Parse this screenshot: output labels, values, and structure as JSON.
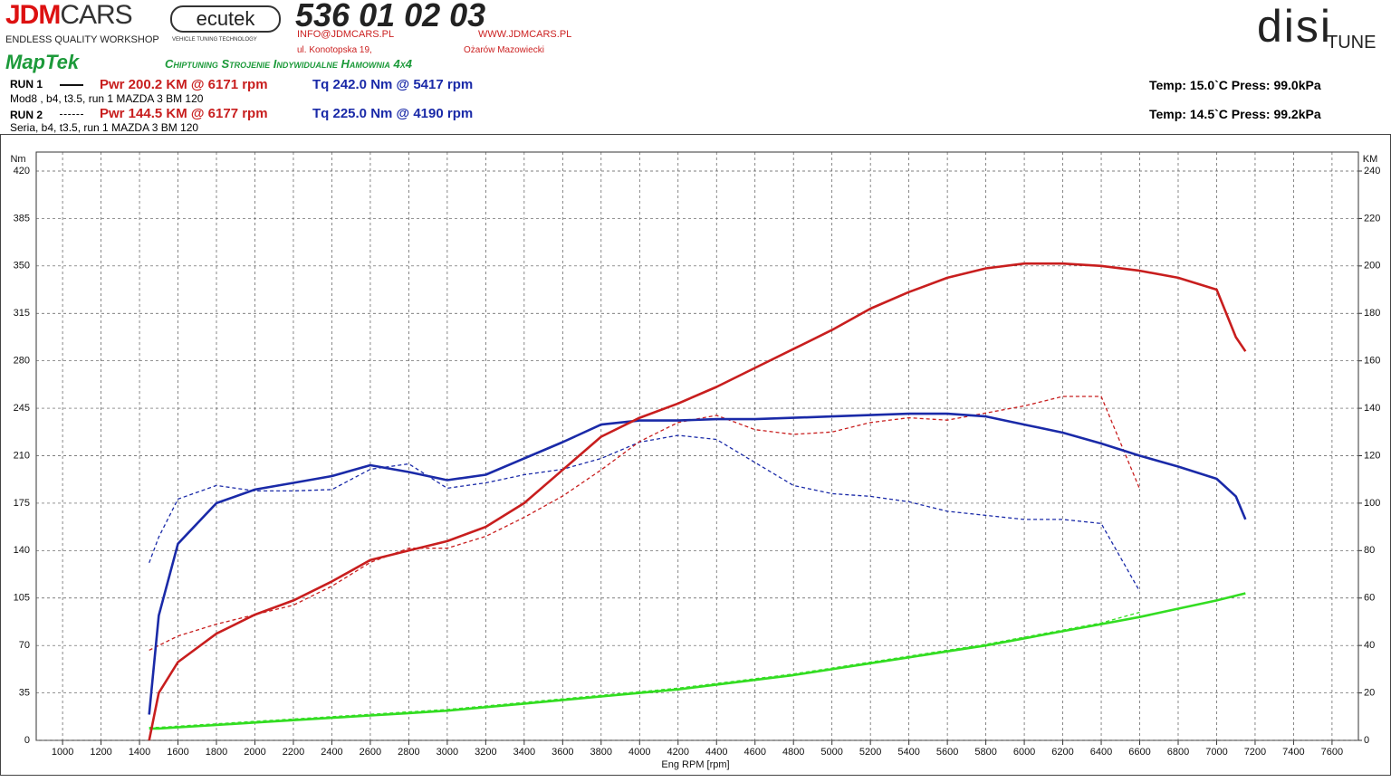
{
  "header": {
    "brand_a": "JDM",
    "brand_b": "CARS",
    "brand_tag": "ENDLESS QUALITY WORKSHOP",
    "ecutek": "ecutek",
    "ecutek_tag": "VEHICLE TUNING TECHNOLOGY",
    "phone": "536 01 02 03",
    "email": "INFO@JDMCARS.PL",
    "web": "WWW.JDMCARS.PL",
    "street": "ul. Konotopska 19,",
    "city": "Ożarów Mazowiecki",
    "maptek": "MapTek",
    "slogan": "Chiptuning Strojenie Indywidualne Hamownia 4x4",
    "disi": "disi",
    "tune": "TUNE"
  },
  "runs": [
    {
      "label": "RUN 1",
      "power": "Pwr  200.2 KM @ 6171 rpm",
      "torque": "Tq 242.0 Nm @ 5417 rpm",
      "desc": "Mod8  , b4, t3.5, run 1 MAZDA 3 BM 120",
      "conditions": "Temp: 15.0`C   Press: 99.0kPa"
    },
    {
      "label": "RUN 2",
      "power": "Pwr  144.5 KM @ 6177 rpm",
      "torque": "Tq 225.0 Nm @ 4190 rpm",
      "desc": "Seria, b4, t3.5, run 1 MAZDA 3 BM 120",
      "conditions": "Temp: 14.5`C   Press: 99.2kPa"
    }
  ],
  "chart_data": {
    "type": "line",
    "x_label": "Eng RPM [rpm]",
    "y_label": "Nm",
    "y2_label": "KM",
    "grid": true,
    "xlim": [
      863,
      7737
    ],
    "ylim": [
      0,
      420
    ],
    "y2lim": [
      0,
      240
    ],
    "xticks": [
      1000,
      1200,
      1400,
      1600,
      1800,
      2000,
      2200,
      2400,
      2600,
      2800,
      3000,
      3200,
      3400,
      3600,
      3800,
      4000,
      4200,
      4400,
      4600,
      4800,
      5000,
      5200,
      5400,
      5600,
      5800,
      6000,
      6200,
      6400,
      6600,
      6800,
      7000,
      7200,
      7400,
      7600
    ],
    "yticks": [
      0,
      35,
      70,
      105,
      140,
      175,
      210,
      245,
      280,
      315,
      350,
      385,
      420
    ],
    "y2ticks": [
      0,
      20,
      40,
      60,
      80,
      100,
      120,
      140,
      160,
      180,
      200,
      220,
      240
    ],
    "x": [
      1450,
      1500,
      1600,
      1800,
      2000,
      2200,
      2400,
      2600,
      2800,
      3000,
      3200,
      3400,
      3600,
      3800,
      4000,
      4200,
      4400,
      4600,
      4800,
      5000,
      5200,
      5400,
      5600,
      5800,
      6000,
      6200,
      6400,
      6600,
      6800,
      7000,
      7100,
      7150
    ],
    "series": [
      {
        "color": "#33dd22",
        "dash": true,
        "axis": "y2",
        "values": [
          5.5,
          5.5,
          6,
          7,
          8,
          9,
          10,
          11,
          12,
          13,
          14.5,
          16,
          17.5,
          19,
          20.5,
          22,
          24,
          26,
          28,
          30.5,
          33,
          35.5,
          38,
          40.5,
          43.5,
          46.5,
          49.5,
          54,
          null,
          null,
          null,
          null
        ]
      },
      {
        "color": "#33dd22",
        "dash": false,
        "axis": "y2",
        "values": [
          5,
          5,
          5.5,
          6.5,
          7.5,
          8.5,
          9.5,
          10.5,
          11.5,
          12.5,
          14,
          15.5,
          17,
          18.5,
          20,
          21.5,
          23.5,
          25.5,
          27.5,
          30,
          32.5,
          35,
          37.5,
          40,
          43,
          46,
          49,
          52,
          55.5,
          59,
          61,
          62
        ]
      },
      {
        "color": "#1a2aa8",
        "dash": true,
        "axis": "y",
        "values": [
          131,
          150,
          178,
          188,
          184,
          184,
          185,
          200,
          204,
          186,
          190,
          196,
          200,
          208,
          220,
          225,
          222,
          205,
          188,
          182,
          180,
          176,
          169,
          166,
          163,
          163,
          160,
          110,
          null,
          null,
          null,
          null
        ]
      },
      {
        "color": "#c81e1e",
        "dash": true,
        "axis": "y2",
        "values": [
          38,
          40,
          44,
          49,
          53,
          57,
          65,
          75,
          81,
          81,
          86,
          94,
          103,
          114,
          126,
          134,
          137,
          131,
          129,
          130,
          134,
          136,
          135,
          138,
          141,
          145,
          145,
          106,
          null,
          null,
          null,
          null
        ]
      },
      {
        "color": "#1a2aa8",
        "dash": false,
        "axis": "y",
        "values": [
          19,
          92,
          145,
          175,
          185,
          190,
          195,
          203,
          198,
          192,
          196,
          208,
          220,
          233,
          236,
          236,
          237,
          237,
          238,
          239,
          240,
          241,
          241,
          239,
          233,
          227,
          219,
          210,
          202,
          193,
          180,
          163
        ]
      },
      {
        "color": "#c81e1e",
        "dash": false,
        "axis": "y2",
        "values": [
          0,
          20,
          33,
          45,
          53,
          59,
          67,
          76,
          80,
          84,
          90,
          100,
          114,
          128,
          136,
          142,
          149,
          157,
          165,
          173,
          182,
          189,
          195,
          199,
          201,
          201,
          200,
          198,
          195,
          190,
          170,
          164
        ]
      }
    ]
  }
}
